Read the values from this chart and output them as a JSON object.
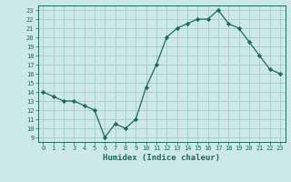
{
  "xlabel": "Humidex (Indice chaleur)",
  "ylabel": "",
  "x_values": [
    0,
    1,
    2,
    3,
    4,
    5,
    6,
    7,
    8,
    9,
    10,
    11,
    12,
    13,
    14,
    15,
    16,
    17,
    18,
    19,
    20,
    21,
    22,
    23
  ],
  "y_values": [
    14,
    13.5,
    13,
    13,
    12.5,
    12,
    9,
    10.5,
    10,
    11,
    14.5,
    17,
    20,
    21,
    21.5,
    22,
    22,
    23,
    21.5,
    21,
    19.5,
    18,
    16.5,
    16
  ],
  "line_color": "#1a6b5e",
  "marker": "D",
  "marker_size": 2.2,
  "background_color": "#cde8e8",
  "grid_color": "#a0cccc",
  "ylim_min": 8.5,
  "ylim_max": 23.5,
  "xlim_min": -0.5,
  "xlim_max": 23.5,
  "yticks": [
    9,
    10,
    11,
    12,
    13,
    14,
    15,
    16,
    17,
    18,
    19,
    20,
    21,
    22,
    23
  ],
  "xticks": [
    0,
    1,
    2,
    3,
    4,
    5,
    6,
    7,
    8,
    9,
    10,
    11,
    12,
    13,
    14,
    15,
    16,
    17,
    18,
    19,
    20,
    21,
    22,
    23
  ],
  "tick_fontsize": 5.0,
  "label_fontsize": 6.5
}
